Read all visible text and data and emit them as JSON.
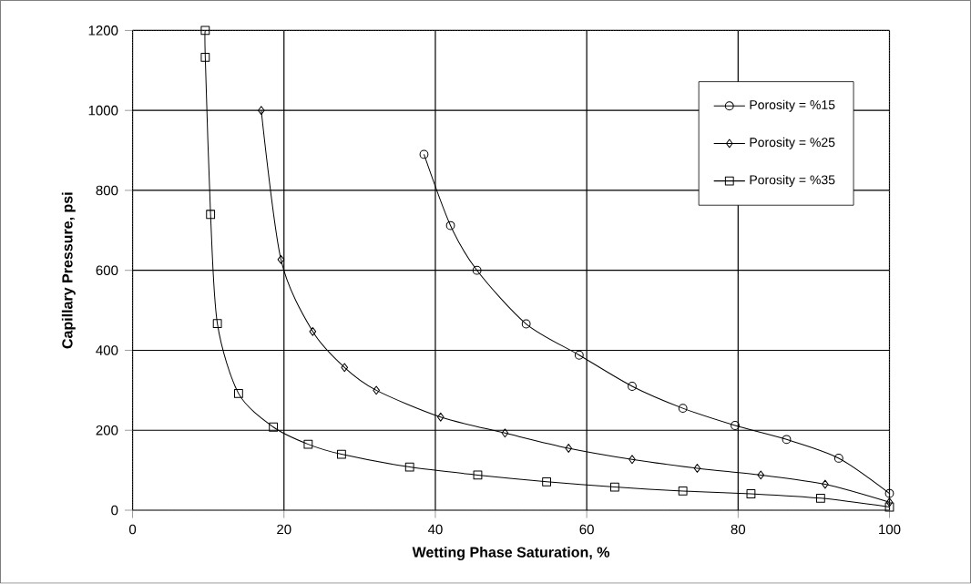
{
  "chart_data": {
    "type": "line",
    "xlabel": "Wetting Phase Saturation, %",
    "ylabel": "Capillary Pressure, psi",
    "xlim": [
      0,
      100
    ],
    "ylim": [
      0,
      1200
    ],
    "xticks": [
      0,
      20,
      40,
      60,
      80,
      100
    ],
    "yticks": [
      0,
      200,
      400,
      600,
      800,
      1000,
      1200
    ],
    "grid": true,
    "legend": "top right",
    "line_style": "solid",
    "series": [
      {
        "name": "Porosity = %15",
        "color": "#000000",
        "marker": "circle",
        "x": [
          38.5,
          42,
          45.5,
          52,
          59,
          66,
          72.7,
          79.6,
          86.4,
          93.3,
          100
        ],
        "values": [
          890,
          712,
          600,
          466,
          388,
          310,
          255,
          212,
          177,
          130,
          42
        ]
      },
      {
        "name": "Porosity = %25",
        "color": "#000000",
        "marker": "diamond",
        "x": [
          17,
          19.6,
          23.8,
          28,
          32.2,
          40.7,
          49.2,
          57.6,
          66,
          74.6,
          83,
          91.5,
          100
        ],
        "values": [
          1000,
          627,
          447,
          357,
          300,
          233,
          193,
          155,
          127,
          105,
          88,
          65,
          20
        ]
      },
      {
        "name": "Porosity = %35",
        "color": "#000000",
        "marker": "square",
        "x": [
          9.6,
          9.6,
          10.3,
          11.2,
          14,
          18.6,
          23.2,
          27.6,
          36.6,
          45.6,
          54.7,
          63.7,
          72.7,
          81.7,
          90.9,
          100
        ],
        "values": [
          1200,
          1133,
          740,
          467,
          292,
          208,
          165,
          140,
          108,
          88,
          71,
          58,
          48,
          41,
          30,
          8
        ]
      }
    ]
  }
}
